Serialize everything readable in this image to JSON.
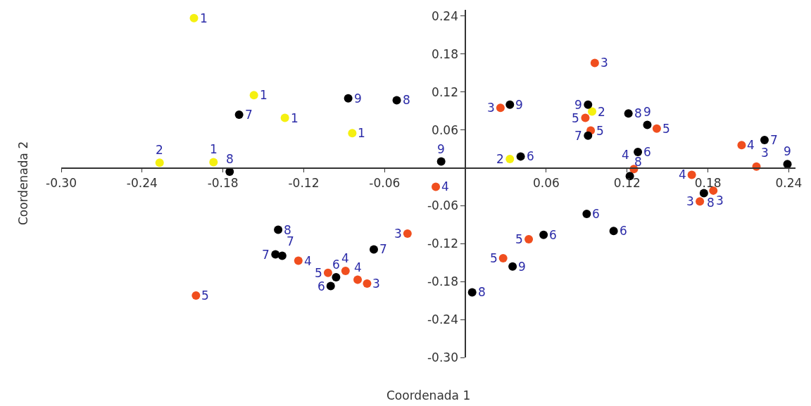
{
  "chart_data": {
    "type": "scatter",
    "xlabel": "Coordenada 1",
    "ylabel": "Coordenada 2",
    "marker": "circle",
    "xlim": [
      -0.3,
      0.245
    ],
    "ylim": [
      -0.3,
      0.25
    ],
    "xticks": [
      {
        "value": -0.3,
        "label": "-0.30"
      },
      -0.24,
      -0.18,
      -0.12,
      -0.06,
      0.06,
      0.12,
      0.18,
      0.24
    ],
    "yticks": [
      {
        "value": -0.3,
        "label": "-0.30"
      },
      -0.24,
      -0.18,
      -0.12,
      -0.06,
      0.06,
      0.12,
      0.18,
      0.24
    ],
    "series": [
      {
        "color": "#f5f010",
        "x": [
          -0.2015,
          -0.157,
          -0.134,
          -0.084,
          -0.227,
          -0.187,
          0.033,
          0.094
        ],
        "values": [
          0.237,
          0.115,
          0.079,
          0.055,
          0.008,
          0.009,
          0.014,
          0.089
        ]
      },
      {
        "color": "#f04e1e",
        "x": [
          0.096,
          0.026,
          0.089,
          0.093,
          0.142,
          0.125,
          0.205,
          0.216,
          0.168,
          0.184,
          0.174,
          -0.022,
          -0.043,
          0.047,
          0.028,
          -0.124,
          -0.102,
          -0.089,
          -0.08,
          -0.073,
          -0.2
        ],
        "values": [
          0.166,
          0.095,
          0.079,
          0.059,
          0.062,
          -0.002,
          0.036,
          0.002,
          -0.011,
          -0.036,
          -0.053,
          -0.03,
          -0.104,
          -0.113,
          -0.143,
          -0.147,
          -0.166,
          -0.163,
          -0.177,
          -0.183,
          -0.202
        ]
      },
      {
        "color": "#000000",
        "x": [
          -0.168,
          -0.087,
          -0.051,
          -0.175,
          -0.018,
          0.033,
          0.041,
          0.091,
          0.091,
          0.121,
          0.135,
          0.128,
          0.122,
          0.222,
          0.239,
          0.177,
          0.09,
          0.11,
          0.058,
          0.035,
          0.005,
          -0.139,
          -0.141,
          -0.136,
          -0.068,
          -0.096,
          -0.1
        ],
        "values": [
          0.084,
          0.11,
          0.107,
          -0.006,
          0.01,
          0.1,
          0.018,
          0.1,
          0.051,
          0.086,
          0.068,
          0.025,
          -0.013,
          0.044,
          0.006,
          -0.04,
          -0.073,
          -0.1,
          -0.106,
          -0.156,
          -0.197,
          -0.098,
          -0.137,
          -0.139,
          -0.129,
          -0.173,
          -0.187
        ]
      }
    ],
    "annotations": [
      {
        "text": "1",
        "x": -0.2015,
        "y": 0.237
      },
      {
        "text": "1",
        "x": -0.157,
        "y": 0.115
      },
      {
        "text": "1",
        "x": -0.134,
        "y": 0.079
      },
      {
        "text": "1",
        "x": -0.084,
        "y": 0.055
      },
      {
        "text": "2",
        "x": -0.227,
        "y": 0.008
      },
      {
        "text": "1",
        "x": -0.187,
        "y": 0.009
      },
      {
        "text": "2",
        "x": 0.033,
        "y": 0.014
      },
      {
        "text": "2",
        "x": 0.094,
        "y": 0.089
      },
      {
        "text": "3",
        "x": 0.096,
        "y": 0.166
      },
      {
        "text": "3",
        "x": 0.026,
        "y": 0.095
      },
      {
        "text": "5",
        "x": 0.089,
        "y": 0.079
      },
      {
        "text": "5",
        "x": 0.093,
        "y": 0.059
      },
      {
        "text": "5",
        "x": 0.142,
        "y": 0.062
      },
      {
        "text": "4",
        "x": 0.125,
        "y": -0.002
      },
      {
        "text": "4",
        "x": 0.205,
        "y": 0.036
      },
      {
        "text": "3",
        "x": 0.216,
        "y": 0.002
      },
      {
        "text": "4",
        "x": 0.168,
        "y": -0.011
      },
      {
        "text": "3",
        "x": 0.184,
        "y": -0.036
      },
      {
        "text": "3",
        "x": 0.174,
        "y": -0.053
      },
      {
        "text": "4",
        "x": -0.022,
        "y": -0.03
      },
      {
        "text": "3",
        "x": -0.043,
        "y": -0.104
      },
      {
        "text": "5",
        "x": 0.047,
        "y": -0.113
      },
      {
        "text": "5",
        "x": 0.028,
        "y": -0.143
      },
      {
        "text": "4",
        "x": -0.124,
        "y": -0.147
      },
      {
        "text": "5",
        "x": -0.102,
        "y": -0.166
      },
      {
        "text": "4",
        "x": -0.089,
        "y": -0.163
      },
      {
        "text": "4",
        "x": -0.08,
        "y": -0.177
      },
      {
        "text": "3",
        "x": -0.073,
        "y": -0.183
      },
      {
        "text": "5",
        "x": -0.2,
        "y": -0.202
      },
      {
        "text": "7",
        "x": -0.168,
        "y": 0.084
      },
      {
        "text": "9",
        "x": -0.087,
        "y": 0.11
      },
      {
        "text": "8",
        "x": -0.051,
        "y": 0.107
      },
      {
        "text": "8",
        "x": -0.175,
        "y": -0.006
      },
      {
        "text": "9",
        "x": -0.018,
        "y": 0.01
      },
      {
        "text": "9",
        "x": 0.033,
        "y": 0.1
      },
      {
        "text": "6",
        "x": 0.041,
        "y": 0.018
      },
      {
        "text": "9",
        "x": 0.091,
        "y": 0.1
      },
      {
        "text": "7",
        "x": 0.091,
        "y": 0.051
      },
      {
        "text": "8",
        "x": 0.121,
        "y": 0.086
      },
      {
        "text": "9",
        "x": 0.135,
        "y": 0.068
      },
      {
        "text": "6",
        "x": 0.128,
        "y": 0.025
      },
      {
        "text": "8",
        "x": 0.122,
        "y": -0.013
      },
      {
        "text": "7",
        "x": 0.222,
        "y": 0.044
      },
      {
        "text": "9",
        "x": 0.239,
        "y": 0.006
      },
      {
        "text": "8",
        "x": 0.177,
        "y": -0.04
      },
      {
        "text": "6",
        "x": 0.09,
        "y": -0.073
      },
      {
        "text": "6",
        "x": 0.11,
        "y": -0.1
      },
      {
        "text": "6",
        "x": 0.058,
        "y": -0.106
      },
      {
        "text": "9",
        "x": 0.035,
        "y": -0.156
      },
      {
        "text": "8",
        "x": 0.005,
        "y": -0.197
      },
      {
        "text": "8",
        "x": -0.139,
        "y": -0.098
      },
      {
        "text": "7",
        "x": -0.141,
        "y": -0.137
      },
      {
        "text": "7",
        "x": -0.136,
        "y": -0.139
      },
      {
        "text": "7",
        "x": -0.068,
        "y": -0.129
      },
      {
        "text": "6",
        "x": -0.096,
        "y": -0.173
      },
      {
        "text": "6",
        "x": -0.1,
        "y": -0.187
      }
    ]
  }
}
